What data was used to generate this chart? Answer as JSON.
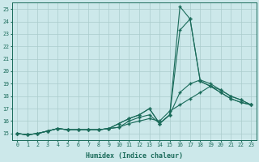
{
  "xlabel": "Humidex (Indice chaleur)",
  "background_color": "#cce8ea",
  "grid_color": "#aacccc",
  "line_color": "#1a6b5a",
  "xlim": [
    -0.5,
    23.5
  ],
  "ylim": [
    14.5,
    25.5
  ],
  "xticks": [
    0,
    1,
    2,
    3,
    4,
    5,
    6,
    7,
    8,
    9,
    10,
    11,
    12,
    13,
    14,
    15,
    16,
    17,
    18,
    19,
    20,
    21,
    22,
    23
  ],
  "yticks": [
    15,
    16,
    17,
    18,
    19,
    20,
    21,
    22,
    23,
    24,
    25
  ],
  "line1": [
    15.0,
    14.9,
    15.0,
    15.2,
    15.4,
    15.3,
    15.3,
    15.3,
    15.3,
    15.4,
    15.8,
    16.2,
    16.5,
    17.0,
    15.8,
    16.5,
    25.2,
    24.2,
    19.2,
    18.8,
    18.3,
    17.8,
    17.5,
    17.3
  ],
  "line2": [
    15.0,
    14.9,
    15.0,
    15.2,
    15.4,
    15.3,
    15.3,
    15.3,
    15.3,
    15.4,
    15.8,
    16.2,
    16.5,
    17.0,
    15.8,
    16.5,
    23.3,
    24.2,
    19.2,
    18.8,
    18.3,
    17.8,
    17.5,
    17.3
  ],
  "line3": [
    15.0,
    14.9,
    15.0,
    15.2,
    15.4,
    15.3,
    15.3,
    15.3,
    15.3,
    15.4,
    15.5,
    16.0,
    16.3,
    16.5,
    15.8,
    16.5,
    18.3,
    19.0,
    19.3,
    19.0,
    18.5,
    18.0,
    17.7,
    17.3
  ],
  "line4": [
    15.0,
    14.9,
    15.0,
    15.2,
    15.4,
    15.3,
    15.3,
    15.3,
    15.3,
    15.4,
    15.5,
    15.8,
    16.0,
    16.2,
    16.0,
    16.8,
    17.3,
    17.8,
    18.3,
    18.8,
    18.5,
    18.0,
    17.7,
    17.3
  ]
}
